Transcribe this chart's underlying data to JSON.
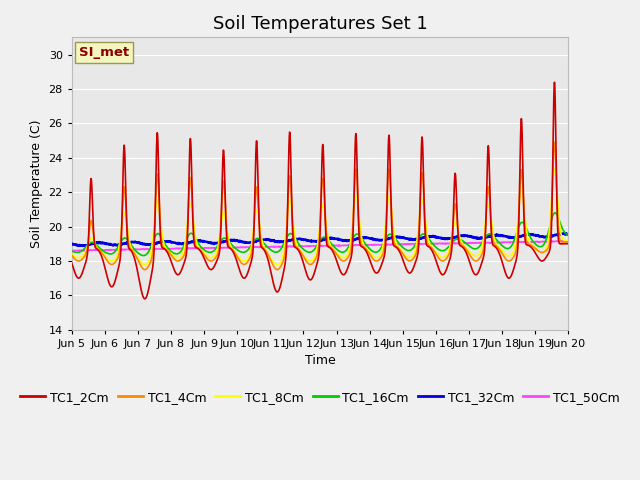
{
  "title": "Soil Temperatures Set 1",
  "xlabel": "Time",
  "ylabel": "Soil Temperature (C)",
  "ylim": [
    14,
    31
  ],
  "yticks": [
    14,
    16,
    18,
    20,
    22,
    24,
    26,
    28,
    30
  ],
  "xtick_labels": [
    "Jun 5",
    "Jun 6",
    "Jun 7",
    "Jun 8",
    "Jun 9",
    "Jun 10",
    "Jun 11",
    "Jun 12",
    "Jun 13",
    "Jun 14",
    "Jun 15",
    "Jun 16",
    "Jun 17",
    "Jun 18",
    "Jun 19",
    "Jun 20"
  ],
  "series": {
    "TC1_2Cm": {
      "color": "#cc0000",
      "lw": 1.2
    },
    "TC1_4Cm": {
      "color": "#ff8800",
      "lw": 1.2
    },
    "TC1_8Cm": {
      "color": "#ffff00",
      "lw": 1.2
    },
    "TC1_16Cm": {
      "color": "#00cc00",
      "lw": 1.2
    },
    "TC1_32Cm": {
      "color": "#0000dd",
      "lw": 1.8
    },
    "TC1_50Cm": {
      "color": "#ff44ff",
      "lw": 1.2
    }
  },
  "annotation_text": "SI_met",
  "annotation_color": "#880000",
  "bg_color": "#e8e8e8",
  "grid_color": "#ffffff",
  "title_fontsize": 13,
  "axis_fontsize": 9,
  "legend_fontsize": 9,
  "fig_bg": "#f0f0f0"
}
